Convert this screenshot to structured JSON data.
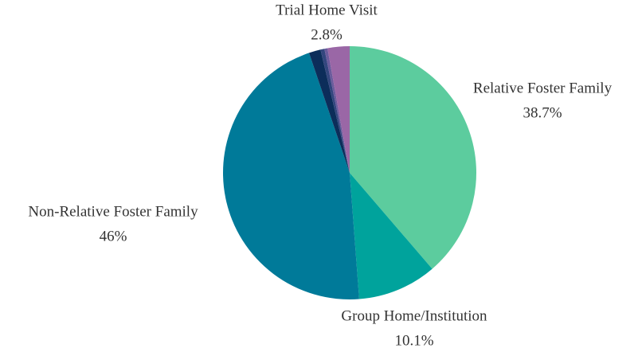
{
  "chart_data": {
    "type": "pie",
    "categories": [
      "Relative Foster Family",
      "Group Home/Institution",
      "Non-Relative Foster Family",
      null,
      null,
      null,
      "Trial Home Visit"
    ],
    "values": [
      38.7,
      10.1,
      46,
      1.5,
      0.5,
      0.4,
      2.8
    ],
    "value_labels": [
      "38.7%",
      "10.1%",
      "46%",
      null,
      null,
      null,
      "2.8%"
    ],
    "colors": [
      "#5ccc9e",
      "#00a39c",
      "#007a99",
      "#0c2d5a",
      "#33467e",
      "#6b5b9c",
      "#9a67a6"
    ]
  }
}
